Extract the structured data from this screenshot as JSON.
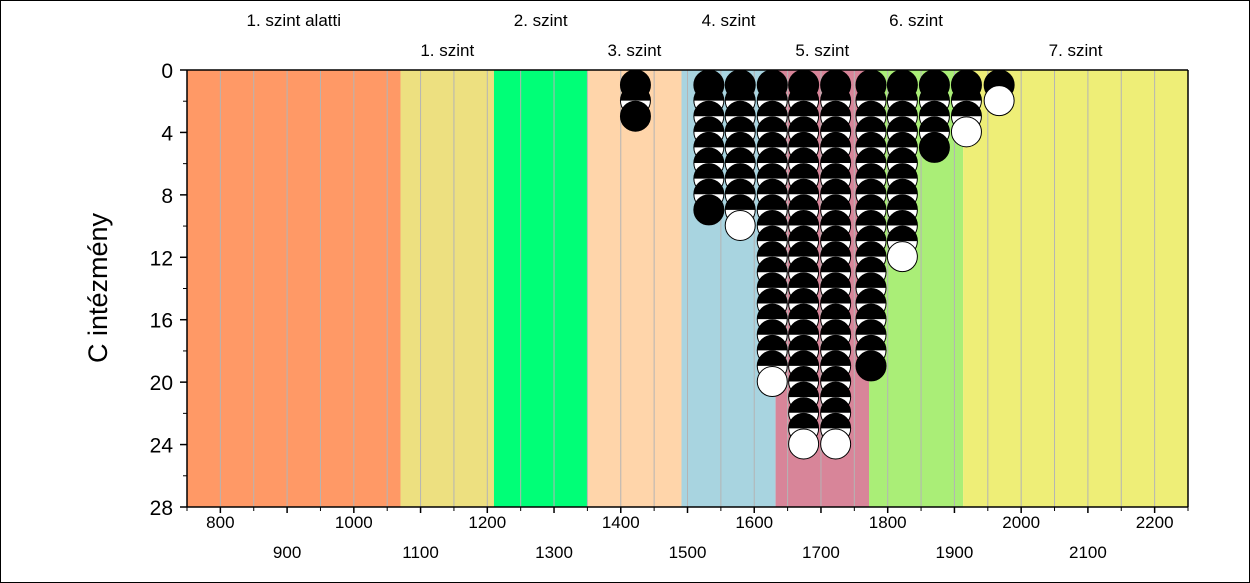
{
  "chart_data": {
    "type": "scatter",
    "title": "",
    "xlabel": "",
    "ylabel": "C intézmény",
    "xlim": [
      750,
      2250
    ],
    "ylim": [
      28,
      0
    ],
    "y_ticks": [
      0,
      4,
      8,
      12,
      16,
      20,
      24,
      28
    ],
    "x_ticks_top_row": [
      800,
      1000,
      1200,
      1400,
      1600,
      1800,
      2000,
      2200
    ],
    "x_ticks_bottom_row": [
      900,
      1100,
      1300,
      1500,
      1700,
      1900,
      2100
    ],
    "grid": "vertical",
    "bands": [
      {
        "label": "1. szint alatti",
        "from": 750,
        "to": 1070,
        "color": "#FF9966",
        "label_row": "upper"
      },
      {
        "label": "1. szint",
        "from": 1070,
        "to": 1210,
        "color": "#EDE080",
        "label_row": "lower"
      },
      {
        "label": "2. szint",
        "from": 1210,
        "to": 1350,
        "color": "#00FF77",
        "label_row": "upper"
      },
      {
        "label": "3. szint",
        "from": 1350,
        "to": 1491,
        "color": "#FFD5AA",
        "label_row": "lower"
      },
      {
        "label": "4. szint",
        "from": 1491,
        "to": 1632,
        "color": "#A8D4E0",
        "label_row": "upper"
      },
      {
        "label": "5. szint",
        "from": 1632,
        "to": 1772,
        "color": "#D88599",
        "label_row": "lower"
      },
      {
        "label": "6. szint",
        "from": 1772,
        "to": 1913,
        "color": "#AAEE77",
        "label_row": "upper"
      },
      {
        "label": "7. szint",
        "from": 1913,
        "to": 2250,
        "color": "#EEEE77",
        "label_row": "lower"
      }
    ],
    "columns": [
      {
        "x": 1422,
        "count": 3
      },
      {
        "x": 1532,
        "count": 9
      },
      {
        "x": 1579,
        "count": 10
      },
      {
        "x": 1627,
        "count": 20
      },
      {
        "x": 1674,
        "count": 24
      },
      {
        "x": 1722,
        "count": 24
      },
      {
        "x": 1775,
        "count": 19
      },
      {
        "x": 1822,
        "count": 12
      },
      {
        "x": 1870,
        "count": 5
      },
      {
        "x": 1918,
        "count": 4
      },
      {
        "x": 1967,
        "count": 2
      }
    ],
    "marker_style": "half-black (top) / half-white (bottom) circles; top marker solid black, last marker in odd-count columns solid black, last marker in even-count columns white"
  }
}
